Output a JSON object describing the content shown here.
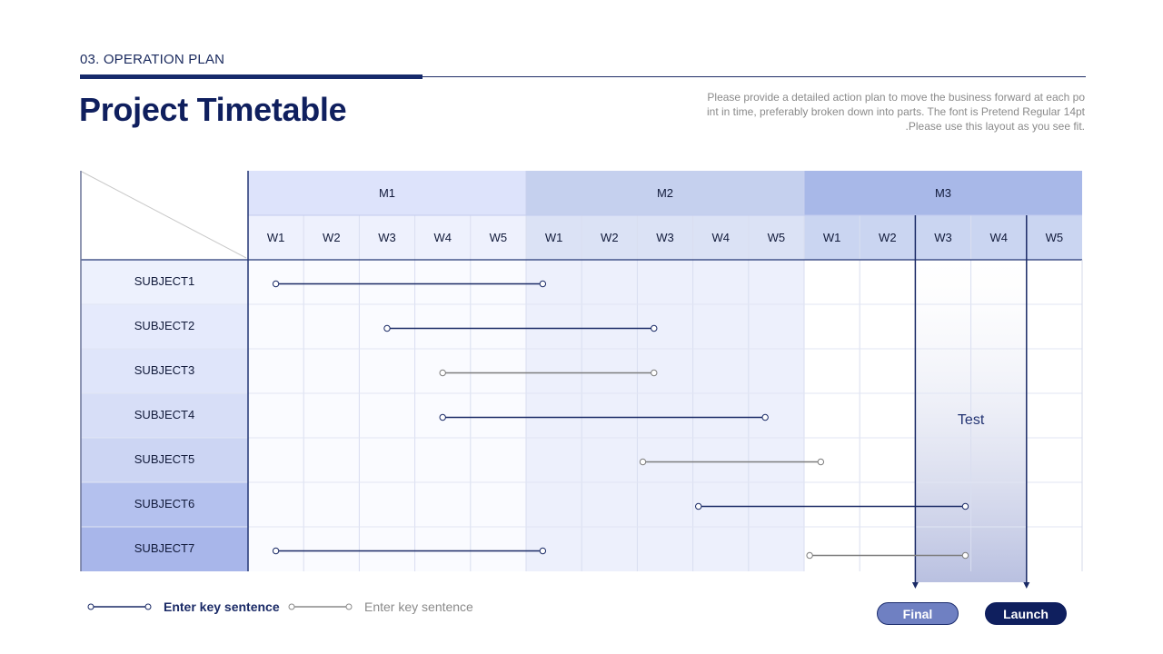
{
  "header": {
    "section_label": "03. OPERATION PLAN",
    "title": "Project Timetable",
    "description_lines": [
      "Please provide a detailed action plan to move the business forward at each po",
      "int in time, preferably broken down into parts. The font is Pretend Regular 14pt",
      ".Please use this layout as you see fit."
    ]
  },
  "timetable": {
    "months": [
      "M1",
      "M2",
      "M3"
    ],
    "weeks": [
      "W1",
      "W2",
      "W3",
      "W4",
      "W5"
    ],
    "subjects": [
      "SUBJECT1",
      "SUBJECT2",
      "SUBJECT3",
      "SUBJECT4",
      "SUBJECT5",
      "SUBJECT6",
      "SUBJECT7"
    ],
    "bars": [
      {
        "row": 0,
        "start_week": 1,
        "end_week": 5.8,
        "style": "dark"
      },
      {
        "row": 1,
        "start_week": 3,
        "end_week": 7.8,
        "style": "dark"
      },
      {
        "row": 2,
        "start_week": 4,
        "end_week": 7.8,
        "style": "gray"
      },
      {
        "row": 3,
        "start_week": 4,
        "end_week": 9.8,
        "style": "dark"
      },
      {
        "row": 4,
        "start_week": 7.6,
        "end_week": 10.8,
        "style": "gray"
      },
      {
        "row": 5,
        "start_week": 8.6,
        "end_week": 13.4,
        "style": "dark"
      },
      {
        "row": 6,
        "start_week": 1,
        "end_week": 5.8,
        "style": "dark"
      },
      {
        "row": 6,
        "start_week": 10.6,
        "end_week": 13.4,
        "style": "gray",
        "offset": 1
      }
    ],
    "test_window": {
      "label": "Test",
      "start_week": 13,
      "end_week": 14
    }
  },
  "legend": {
    "items": [
      {
        "label": "Enter key sentence",
        "style": "dark"
      },
      {
        "label": "Enter key sentence",
        "style": "gray"
      }
    ]
  },
  "milestones": {
    "final_label": "Final",
    "launch_label": "Launch"
  },
  "colors": {
    "navy": "#0f1f5e",
    "gray_line": "#7a7a7a",
    "m1_header": "#dde3fb",
    "m2_header": "#c5d0ee",
    "m3_header": "#a8b8e8"
  }
}
